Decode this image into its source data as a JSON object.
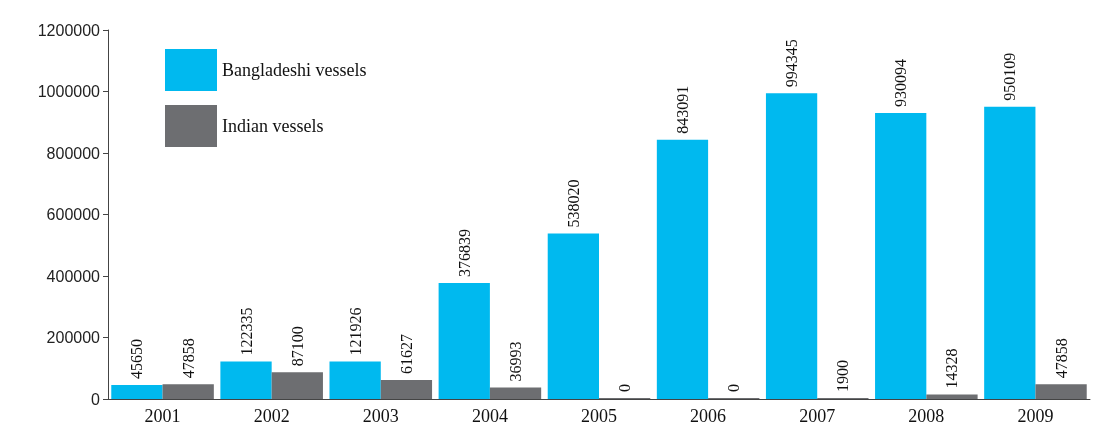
{
  "chart_data": {
    "type": "bar",
    "categories": [
      "2001",
      "2002",
      "2003",
      "2004",
      "2005",
      "2006",
      "2007",
      "2008",
      "2009"
    ],
    "series": [
      {
        "name": "Bangladeshi vessels",
        "color": "#00b9ef",
        "values": [
          45650,
          122335,
          121926,
          376839,
          538020,
          843091,
          994345,
          930094,
          950109
        ]
      },
      {
        "name": "Indian vessels",
        "color": "#6d6e71",
        "values": [
          47858,
          87100,
          61627,
          36993,
          0,
          0,
          1900,
          14328,
          47858
        ]
      }
    ],
    "ylim": [
      0,
      1200000
    ],
    "yticks": [
      0,
      200000,
      400000,
      600000,
      800000,
      1000000,
      1200000
    ],
    "grid": false,
    "legend": "top left",
    "data_labels": true
  }
}
